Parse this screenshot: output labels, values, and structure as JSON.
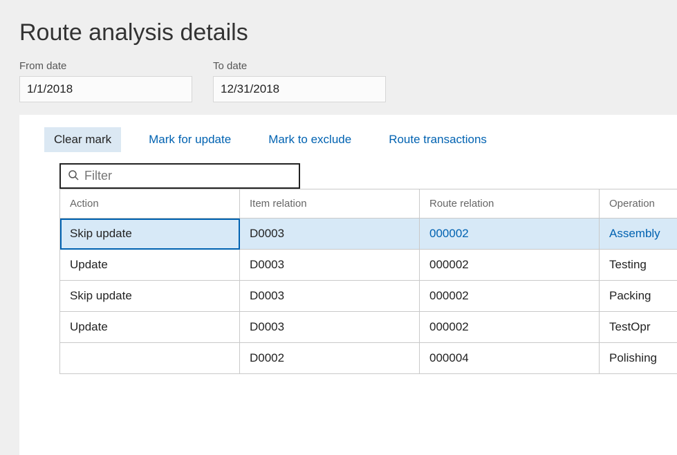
{
  "title": "Route analysis details",
  "filters": {
    "from": {
      "label": "From date",
      "value": "1/1/2018"
    },
    "to": {
      "label": "To date",
      "value": "12/31/2018"
    }
  },
  "toolbar": {
    "clear_mark": "Clear mark",
    "mark_update": "Mark for update",
    "mark_exclude": "Mark to exclude",
    "route_tx": "Route transactions"
  },
  "filter_placeholder": "Filter",
  "columns": {
    "action": "Action",
    "item": "Item relation",
    "route": "Route relation",
    "operation": "Operation"
  },
  "rows": [
    {
      "action": "Skip update",
      "item": "D0003",
      "route": "000002",
      "operation": "Assembly",
      "selected": true
    },
    {
      "action": "Update",
      "item": "D0003",
      "route": "000002",
      "operation": "Testing",
      "selected": false
    },
    {
      "action": "Skip update",
      "item": "D0003",
      "route": "000002",
      "operation": "Packing",
      "selected": false
    },
    {
      "action": "Update",
      "item": "D0003",
      "route": "000002",
      "operation": "TestOpr",
      "selected": false
    },
    {
      "action": "",
      "item": "D0002",
      "route": "000004",
      "operation": "Polishing",
      "selected": false
    }
  ],
  "colors": {
    "page_bg": "#efefef",
    "panel_bg": "#ffffff",
    "link": "#0062b1",
    "selected_row_bg": "#d7e9f7",
    "primary_btn_bg": "#dbe8f3",
    "border": "#c9c9c9",
    "input_bg": "#fbfbfb"
  }
}
